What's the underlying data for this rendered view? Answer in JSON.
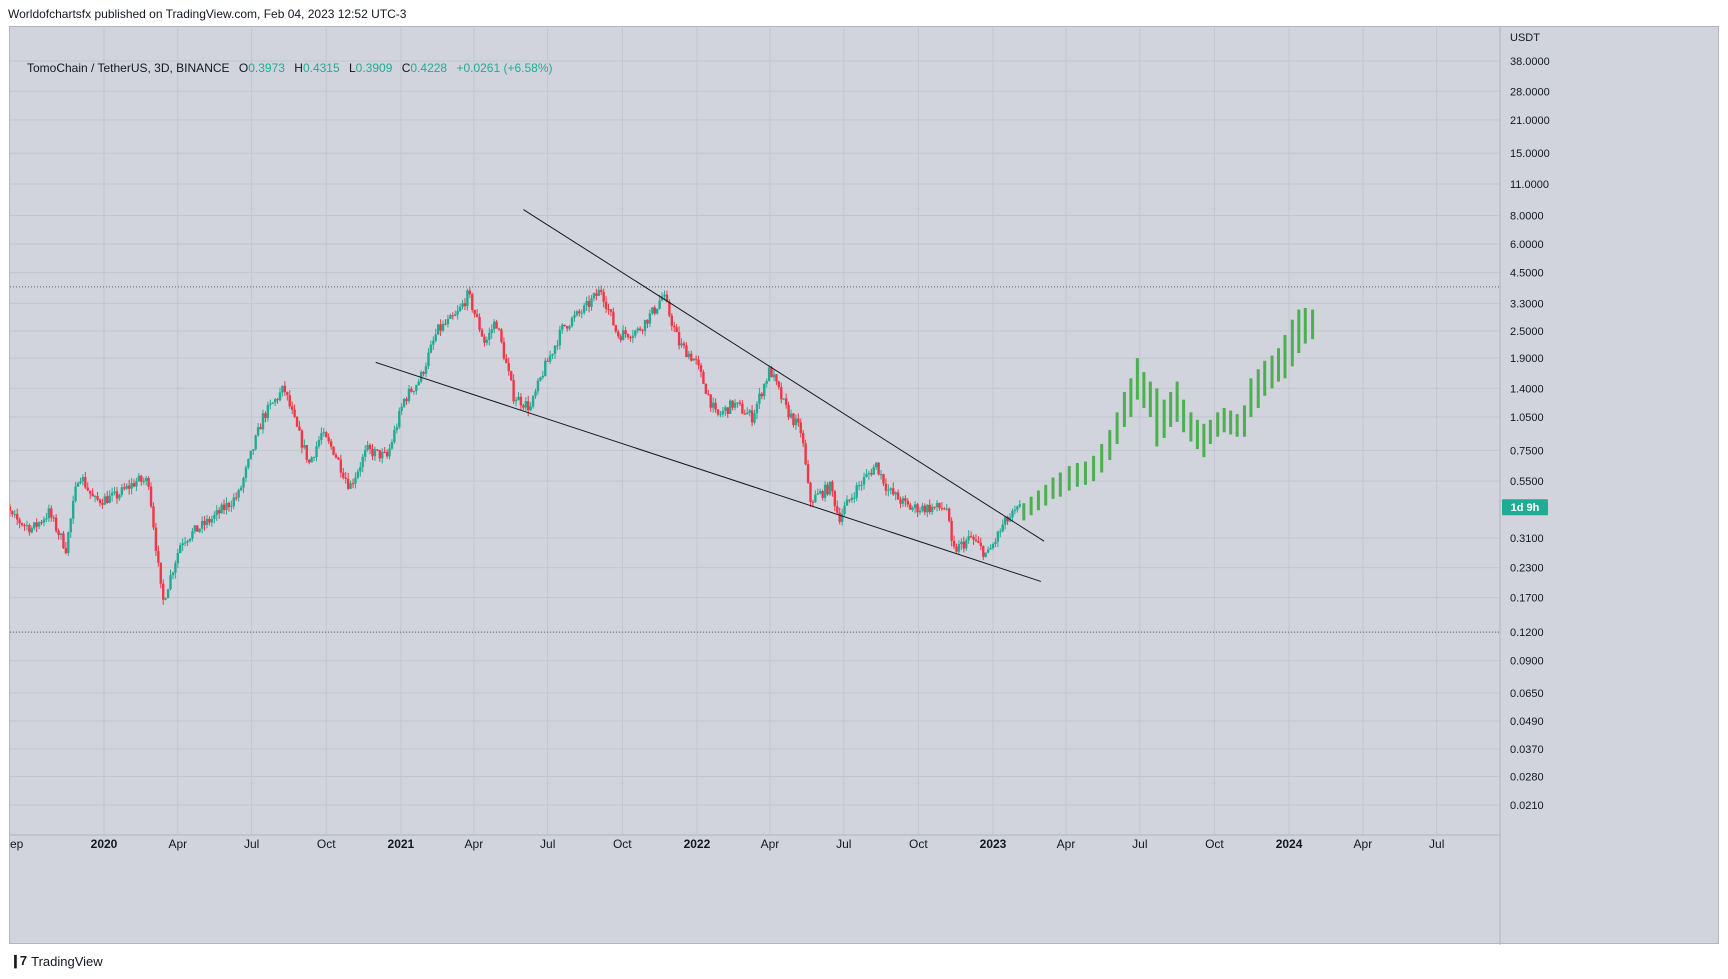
{
  "published": "Worldofchartsfx published on TradingView.com, Feb 04, 2023 12:52 UTC-3",
  "header": {
    "symbol": "TomoChain / TetherUS, 3D, BINANCE",
    "open_label": "O",
    "open": "0.3973",
    "high_label": "H",
    "high": "0.4315",
    "low_label": "L",
    "low": "0.3909",
    "close_label": "C",
    "close": "0.4228",
    "change": "+0.0261 (+6.58%)"
  },
  "footer_brand": "TradingView",
  "colors": {
    "background": "#d1d4dc",
    "grid": "#c3c6ce",
    "up": "#22ab94",
    "down": "#f23645",
    "projection": "#4caf50",
    "trendline": "#131722",
    "badge": "#22ab94"
  },
  "chart_data": {
    "type": "candlestick",
    "scale": "log",
    "currency_label": "USDT",
    "y_ticks": [
      "38.0000",
      "28.0000",
      "21.0000",
      "15.0000",
      "11.0000",
      "8.0000",
      "6.0000",
      "4.5000",
      "3.3000",
      "2.5000",
      "1.9000",
      "1.4000",
      "1.0500",
      "0.7500",
      "0.5500",
      "0.3100",
      "0.2300",
      "0.1700",
      "0.1200",
      "0.0900",
      "0.0650",
      "0.0490",
      "0.0370",
      "0.0280",
      "0.0210"
    ],
    "x_ticks": [
      {
        "label": "ep",
        "date": "2019-09-01",
        "bold": false
      },
      {
        "label": "2020",
        "date": "2020-01-01",
        "bold": true
      },
      {
        "label": "Apr",
        "date": "2020-04-01",
        "bold": false
      },
      {
        "label": "Jul",
        "date": "2020-07-01",
        "bold": false
      },
      {
        "label": "Oct",
        "date": "2020-10-01",
        "bold": false
      },
      {
        "label": "2021",
        "date": "2021-01-01",
        "bold": true
      },
      {
        "label": "Apr",
        "date": "2021-04-01",
        "bold": false
      },
      {
        "label": "Jul",
        "date": "2021-07-01",
        "bold": false
      },
      {
        "label": "Oct",
        "date": "2021-10-01",
        "bold": false
      },
      {
        "label": "2022",
        "date": "2022-01-01",
        "bold": true
      },
      {
        "label": "Apr",
        "date": "2022-04-01",
        "bold": false
      },
      {
        "label": "Jul",
        "date": "2022-07-01",
        "bold": false
      },
      {
        "label": "Oct",
        "date": "2022-10-01",
        "bold": false
      },
      {
        "label": "2023",
        "date": "2023-01-01",
        "bold": true
      },
      {
        "label": "Apr",
        "date": "2023-04-01",
        "bold": false
      },
      {
        "label": "Jul",
        "date": "2023-07-01",
        "bold": false
      },
      {
        "label": "Oct",
        "date": "2023-10-01",
        "bold": false
      },
      {
        "label": "2024",
        "date": "2024-01-01",
        "bold": true
      },
      {
        "label": "Apr",
        "date": "2024-04-01",
        "bold": false
      },
      {
        "label": "Jul",
        "date": "2024-07-01",
        "bold": false
      }
    ],
    "countdown_badge": "1d 9h",
    "horizontal_levels": [
      3.9,
      0.12
    ],
    "price_path": [
      [
        "2019-08-20",
        0.52
      ],
      [
        "2019-09-10",
        0.38
      ],
      [
        "2019-10-05",
        0.34
      ],
      [
        "2019-10-25",
        0.4
      ],
      [
        "2019-11-15",
        0.28
      ],
      [
        "2019-12-01",
        0.6
      ],
      [
        "2019-12-20",
        0.45
      ],
      [
        "2020-01-15",
        0.47
      ],
      [
        "2020-02-10",
        0.55
      ],
      [
        "2020-02-25",
        0.55
      ],
      [
        "2020-03-13",
        0.16
      ],
      [
        "2020-04-05",
        0.3
      ],
      [
        "2020-05-15",
        0.38
      ],
      [
        "2020-06-15",
        0.48
      ],
      [
        "2020-07-15",
        1.05
      ],
      [
        "2020-08-10",
        1.4
      ],
      [
        "2020-08-25",
        0.95
      ],
      [
        "2020-09-10",
        0.66
      ],
      [
        "2020-09-25",
        0.88
      ],
      [
        "2020-10-10",
        0.75
      ],
      [
        "2020-10-30",
        0.52
      ],
      [
        "2020-11-20",
        0.75
      ],
      [
        "2020-12-15",
        0.7
      ],
      [
        "2021-01-05",
        1.25
      ],
      [
        "2021-01-25",
        1.55
      ],
      [
        "2021-02-15",
        2.5
      ],
      [
        "2021-03-10",
        2.9
      ],
      [
        "2021-03-25",
        3.6
      ],
      [
        "2021-04-15",
        2.2
      ],
      [
        "2021-04-28",
        2.8
      ],
      [
        "2021-05-20",
        1.3
      ],
      [
        "2021-06-10",
        1.15
      ],
      [
        "2021-06-25",
        1.65
      ],
      [
        "2021-07-20",
        2.6
      ],
      [
        "2021-08-15",
        3.1
      ],
      [
        "2021-09-05",
        3.8
      ],
      [
        "2021-09-25",
        2.4
      ],
      [
        "2021-10-20",
        2.5
      ],
      [
        "2021-11-10",
        3.1
      ],
      [
        "2021-11-20",
        3.6
      ],
      [
        "2021-12-10",
        2.2
      ],
      [
        "2021-12-30",
        1.85
      ],
      [
        "2022-01-25",
        1.05
      ],
      [
        "2022-02-15",
        1.2
      ],
      [
        "2022-03-10",
        1.05
      ],
      [
        "2022-04-01",
        1.7
      ],
      [
        "2022-04-20",
        1.15
      ],
      [
        "2022-05-10",
        0.9
      ],
      [
        "2022-05-20",
        0.45
      ],
      [
        "2022-06-15",
        0.52
      ],
      [
        "2022-06-25",
        0.38
      ],
      [
        "2022-07-15",
        0.5
      ],
      [
        "2022-08-10",
        0.65
      ],
      [
        "2022-08-25",
        0.5
      ],
      [
        "2022-09-20",
        0.42
      ],
      [
        "2022-10-10",
        0.42
      ],
      [
        "2022-11-05",
        0.42
      ],
      [
        "2022-11-12",
        0.27
      ],
      [
        "2022-12-05",
        0.31
      ],
      [
        "2022-12-25",
        0.26
      ],
      [
        "2023-01-15",
        0.36
      ],
      [
        "2023-02-04",
        0.42
      ]
    ],
    "trendlines": [
      {
        "name": "upper",
        "from": [
          "2021-06-01",
          8.5
        ],
        "to": [
          "2023-03-05",
          0.3
        ]
      },
      {
        "name": "lower",
        "from": [
          "2020-12-01",
          1.82
        ],
        "to": [
          "2023-03-01",
          0.2
        ]
      }
    ],
    "projection_bars": [
      [
        "2023-02-08",
        0.37,
        0.44
      ],
      [
        "2023-02-17",
        0.39,
        0.47
      ],
      [
        "2023-02-26",
        0.41,
        0.5
      ],
      [
        "2023-03-07",
        0.43,
        0.53
      ],
      [
        "2023-03-16",
        0.46,
        0.57
      ],
      [
        "2023-03-25",
        0.47,
        0.6
      ],
      [
        "2023-04-05",
        0.5,
        0.64
      ],
      [
        "2023-04-15",
        0.52,
        0.66
      ],
      [
        "2023-04-25",
        0.53,
        0.67
      ],
      [
        "2023-05-05",
        0.55,
        0.71
      ],
      [
        "2023-05-15",
        0.6,
        0.8
      ],
      [
        "2023-05-25",
        0.68,
        0.92
      ],
      [
        "2023-06-03",
        0.8,
        1.1
      ],
      [
        "2023-06-12",
        0.95,
        1.35
      ],
      [
        "2023-06-20",
        1.05,
        1.55
      ],
      [
        "2023-06-28",
        1.25,
        1.9
      ],
      [
        "2023-07-06",
        1.15,
        1.65
      ],
      [
        "2023-07-14",
        1.05,
        1.5
      ],
      [
        "2023-07-22",
        0.78,
        1.4
      ],
      [
        "2023-07-31",
        0.85,
        1.25
      ],
      [
        "2023-08-08",
        0.95,
        1.35
      ],
      [
        "2023-08-16",
        1.0,
        1.5
      ],
      [
        "2023-08-24",
        0.9,
        1.25
      ],
      [
        "2023-09-02",
        0.82,
        1.1
      ],
      [
        "2023-09-10",
        0.76,
        1.02
      ],
      [
        "2023-09-18",
        0.7,
        0.98
      ],
      [
        "2023-09-26",
        0.8,
        1.02
      ],
      [
        "2023-10-05",
        0.86,
        1.1
      ],
      [
        "2023-10-13",
        0.9,
        1.15
      ],
      [
        "2023-10-21",
        0.88,
        1.12
      ],
      [
        "2023-10-29",
        0.86,
        1.08
      ],
      [
        "2023-11-07",
        0.86,
        1.18
      ],
      [
        "2023-11-15",
        1.05,
        1.55
      ],
      [
        "2023-11-24",
        1.15,
        1.7
      ],
      [
        "2023-12-02",
        1.3,
        1.85
      ],
      [
        "2023-12-11",
        1.4,
        1.95
      ],
      [
        "2023-12-19",
        1.5,
        2.1
      ],
      [
        "2023-12-27",
        1.55,
        2.4
      ],
      [
        "2024-01-05",
        1.75,
        2.8
      ],
      [
        "2024-01-13",
        2.0,
        3.1
      ],
      [
        "2024-01-21",
        2.2,
        3.15
      ],
      [
        "2024-01-30",
        2.3,
        3.1
      ]
    ]
  }
}
